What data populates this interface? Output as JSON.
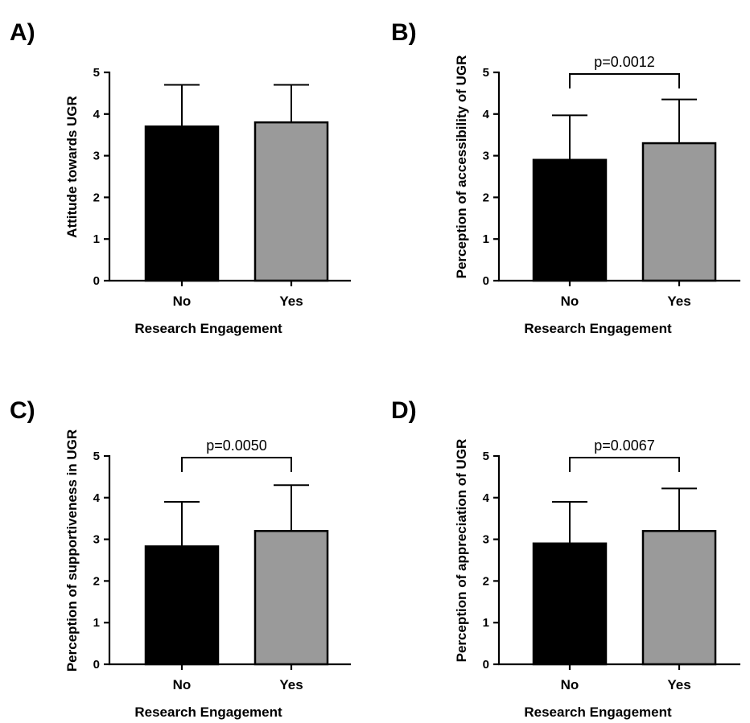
{
  "chart_data": [
    {
      "type": "bar",
      "panel_label": "A)",
      "categories": [
        "No",
        "Yes"
      ],
      "values": [
        3.7,
        3.8
      ],
      "errors": [
        1.0,
        0.9
      ],
      "bar_colors": [
        "#000000",
        "#9a9a9a"
      ],
      "xlabel": "Research Engagement",
      "ylabel": "Attitude towards UGR",
      "ylim": [
        0,
        5
      ],
      "yticks": [
        "0",
        "1",
        "2",
        "3",
        "4",
        "5"
      ],
      "significance": ""
    },
    {
      "type": "bar",
      "panel_label": "B)",
      "categories": [
        "No",
        "Yes"
      ],
      "values": [
        2.9,
        3.3
      ],
      "errors": [
        1.07,
        1.05
      ],
      "bar_colors": [
        "#000000",
        "#9a9a9a"
      ],
      "xlabel": "Research Engagement",
      "ylabel": "Perception of accessibility of UGR",
      "ylim": [
        0,
        5
      ],
      "yticks": [
        "0",
        "1",
        "2",
        "3",
        "4",
        "5"
      ],
      "significance": "p=0.0012"
    },
    {
      "type": "bar",
      "panel_label": "C)",
      "categories": [
        "No",
        "Yes"
      ],
      "values": [
        2.83,
        3.2
      ],
      "errors": [
        1.07,
        1.1
      ],
      "bar_colors": [
        "#000000",
        "#9a9a9a"
      ],
      "xlabel": "Research Engagement",
      "ylabel": "Perception of supportiveness in UGR",
      "ylim": [
        0,
        5
      ],
      "yticks": [
        "0",
        "1",
        "2",
        "3",
        "4",
        "5"
      ],
      "significance": "p=0.0050"
    },
    {
      "type": "bar",
      "panel_label": "D)",
      "categories": [
        "No",
        "Yes"
      ],
      "values": [
        2.9,
        3.2
      ],
      "errors": [
        1.0,
        1.02
      ],
      "bar_colors": [
        "#000000",
        "#9a9a9a"
      ],
      "xlabel": "Research Engagement",
      "ylabel": "Perception of appreciation of UGR",
      "ylim": [
        0,
        5
      ],
      "yticks": [
        "0",
        "1",
        "2",
        "3",
        "4",
        "5"
      ],
      "significance": "p=0.0067"
    }
  ]
}
